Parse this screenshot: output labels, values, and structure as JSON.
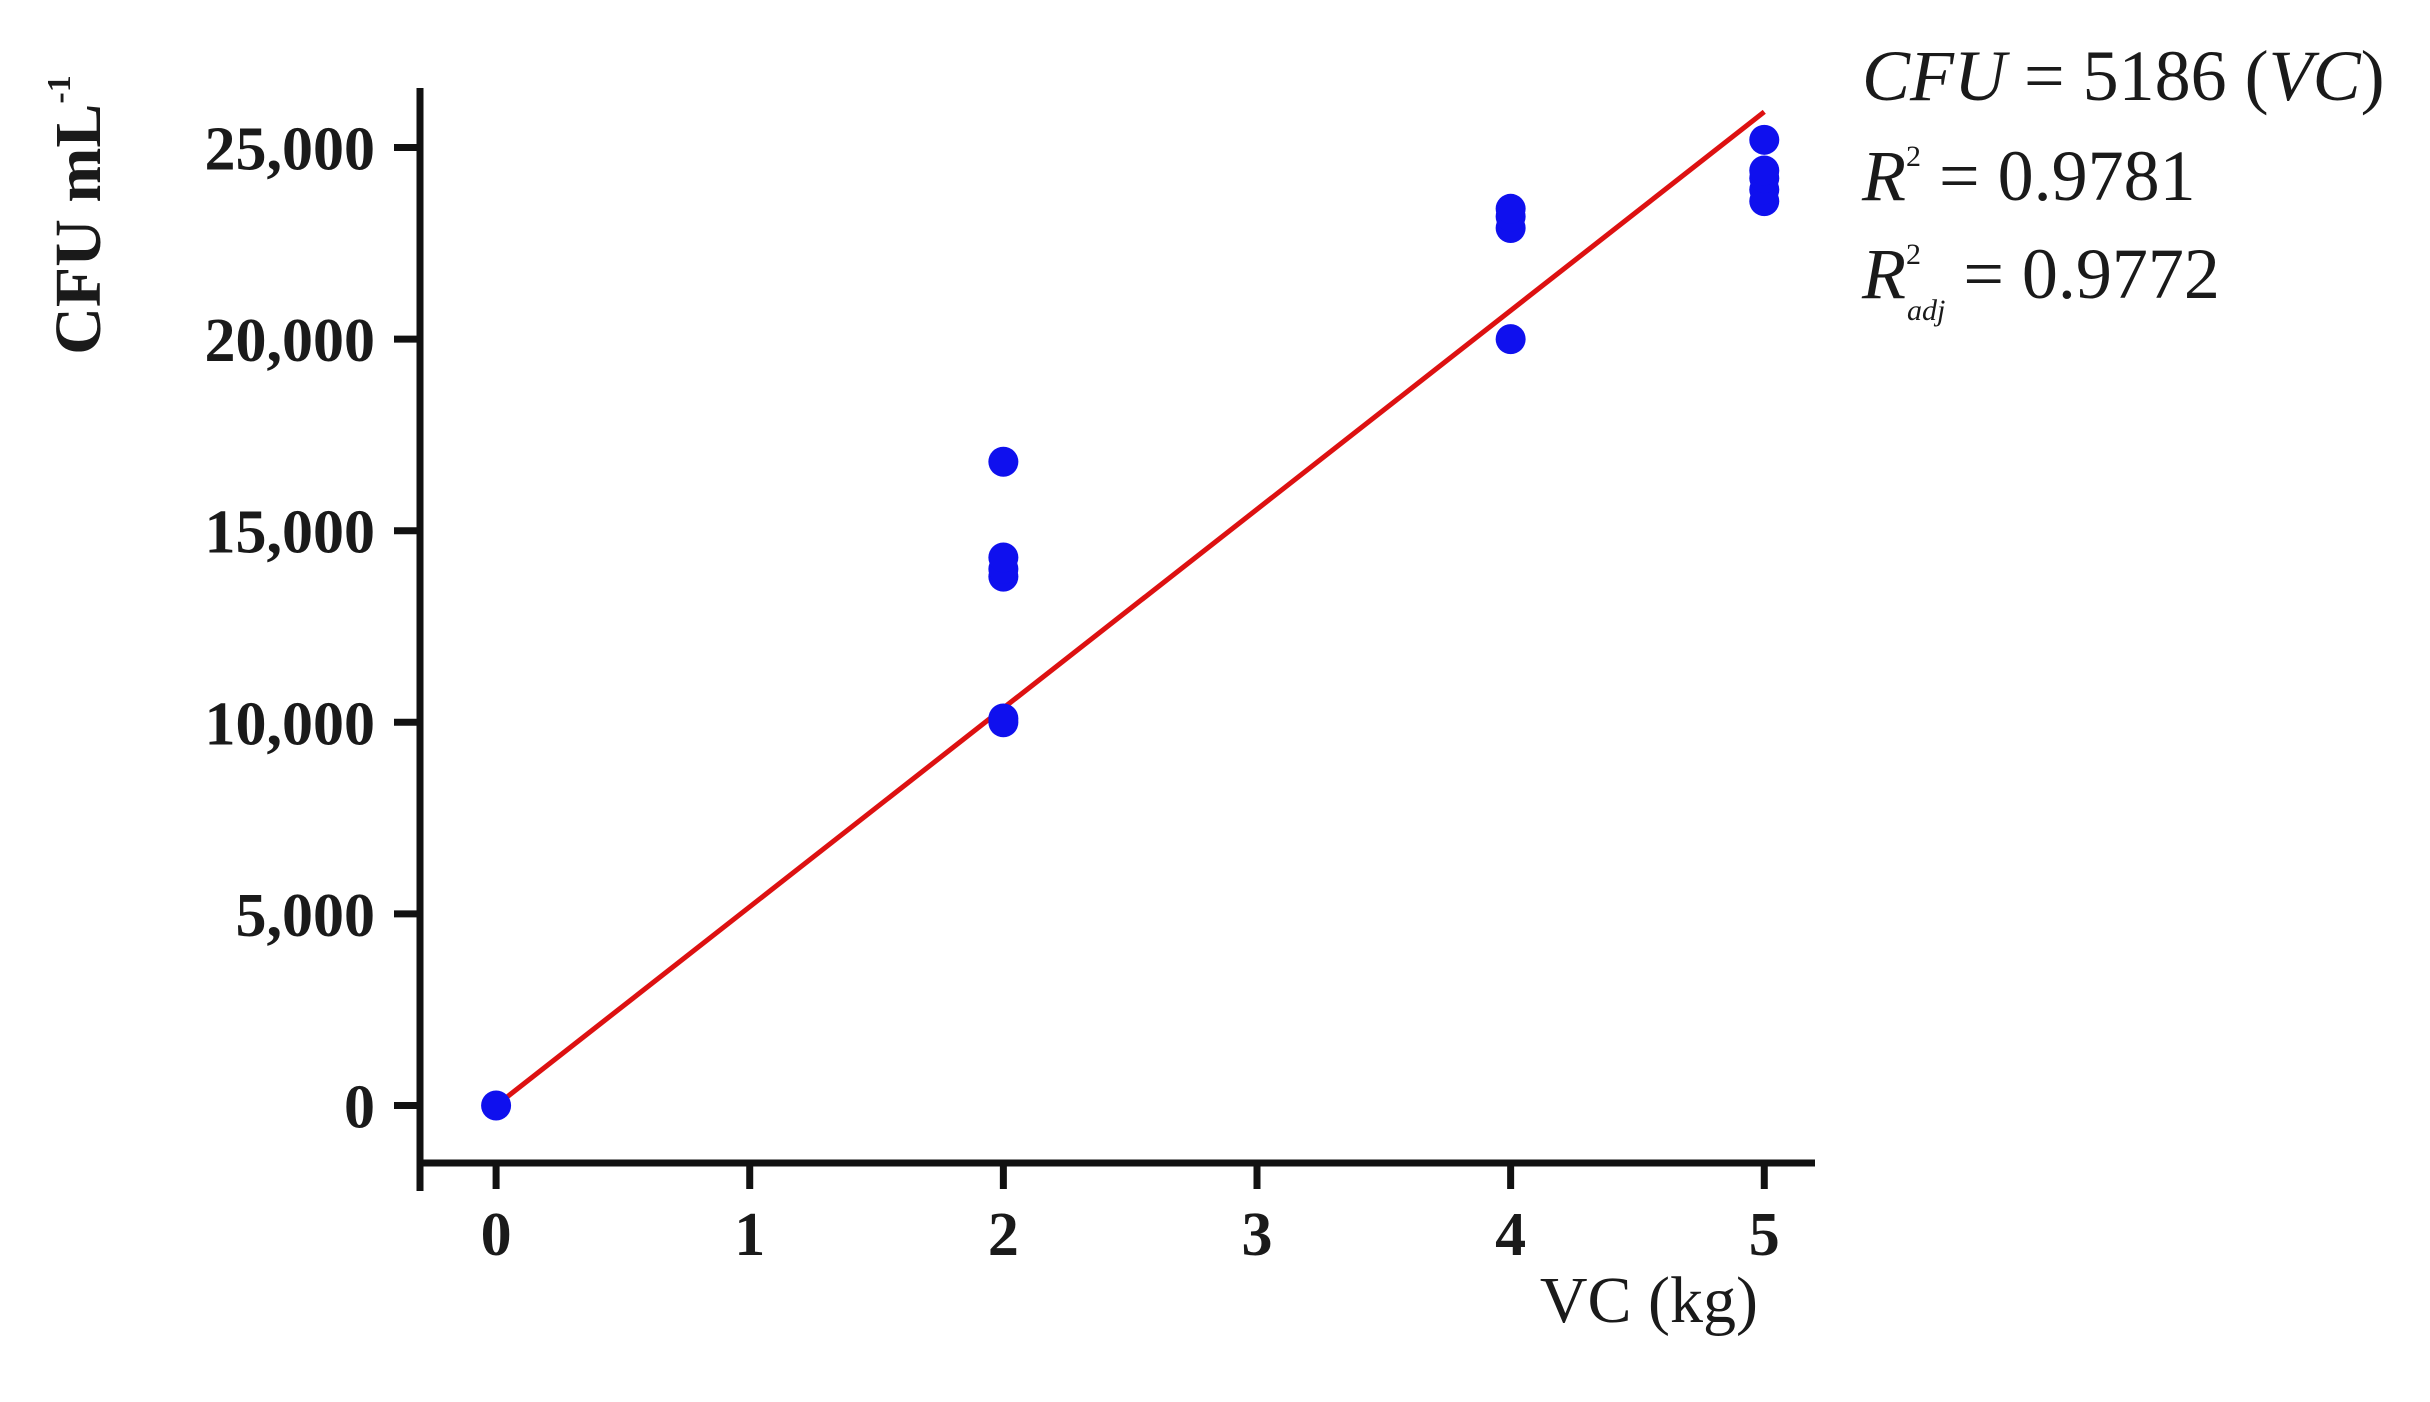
{
  "chart_data": {
    "type": "scatter",
    "title": "",
    "xlabel": "VC (kg)",
    "ylabel": "CFU mL",
    "ylabel_superscript": "-1",
    "xlim": [
      -0.3,
      5.2
    ],
    "ylim": [
      -1500,
      26500
    ],
    "x_ticks": [
      {
        "value": 0,
        "label": "0"
      },
      {
        "value": 1,
        "label": "1"
      },
      {
        "value": 2,
        "label": "2"
      },
      {
        "value": 3,
        "label": "3"
      },
      {
        "value": 4,
        "label": "4"
      },
      {
        "value": 5,
        "label": "5"
      }
    ],
    "y_ticks": [
      {
        "value": 0,
        "label": "0"
      },
      {
        "value": 5000,
        "label": "5,000"
      },
      {
        "value": 10000,
        "label": "10,000"
      },
      {
        "value": 15000,
        "label": "15,000"
      },
      {
        "value": 20000,
        "label": "20,000"
      },
      {
        "value": 25000,
        "label": "25,000"
      }
    ],
    "grid": false,
    "series": [
      {
        "points": [
          {
            "x": 0,
            "y": 0
          },
          {
            "x": 2,
            "y": 10000
          },
          {
            "x": 2,
            "y": 10100
          },
          {
            "x": 2,
            "y": 13800
          },
          {
            "x": 2,
            "y": 14000
          },
          {
            "x": 2,
            "y": 14300
          },
          {
            "x": 2,
            "y": 16800
          },
          {
            "x": 4,
            "y": 20000
          },
          {
            "x": 4,
            "y": 22900
          },
          {
            "x": 4,
            "y": 23200
          },
          {
            "x": 4,
            "y": 23400
          },
          {
            "x": 5,
            "y": 23600
          },
          {
            "x": 5,
            "y": 23900
          },
          {
            "x": 5,
            "y": 24200
          },
          {
            "x": 5,
            "y": 24400
          },
          {
            "x": 5,
            "y": 25200
          }
        ],
        "color": "#0f10ee"
      }
    ],
    "fit_line": {
      "slope": 5186,
      "intercept": 0,
      "x_range": [
        0,
        5
      ],
      "color": "#dd1111"
    },
    "annotations": [
      {
        "lhs": "CFU",
        "rhs": " = 5186 (",
        "var": "VC",
        "close": ")"
      },
      {
        "lhs": "R",
        "sup": "2",
        "rhs": " = 0.9781"
      },
      {
        "lhs": "R",
        "sup": "2",
        "sub": "adj",
        "rhs": " = 0.9772"
      }
    ]
  }
}
